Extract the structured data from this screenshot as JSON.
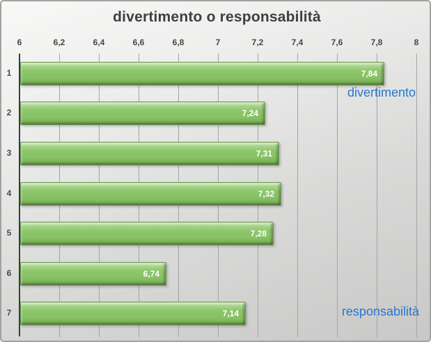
{
  "chart_data": {
    "type": "bar",
    "orientation": "horizontal",
    "title": "divertimento o responsabilità",
    "categories": [
      "1",
      "2",
      "3",
      "4",
      "5",
      "6",
      "7"
    ],
    "values": [
      7.84,
      7.24,
      7.31,
      7.32,
      7.28,
      6.74,
      7.14
    ],
    "value_labels": [
      "7,84",
      "7,24",
      "7,31",
      "7,32",
      "7,28",
      "6,74",
      "7,14"
    ],
    "x_axis": {
      "min": 6,
      "max": 8,
      "step": 0.2,
      "position": "top",
      "tick_labels": [
        "6",
        "6,2",
        "6,4",
        "6,6",
        "6,8",
        "7",
        "7,2",
        "7,4",
        "7,6",
        "7,8",
        "8"
      ]
    },
    "grid": true,
    "legend": "none",
    "annotations": [
      {
        "text": "divertimento",
        "color": "#2577D2",
        "anchor": "right-of-bar-1"
      },
      {
        "text": "responsabilità",
        "color": "#2577D2",
        "anchor": "right-of-bar-7"
      }
    ],
    "colors": {
      "bar": "#8DC56C",
      "bar_highlight": "#C6E4B0",
      "bar_shadow": "#6B9C4C",
      "gridline": "#A4A4A4",
      "axis": "#3C3C3C",
      "title": "#3F3F3F",
      "tick_label": "#454545",
      "value_label": "#FFFFFF",
      "annotation": "#2577D2",
      "background_top": "#F8F8F7",
      "background_bottom": "#C8C8C7"
    }
  }
}
